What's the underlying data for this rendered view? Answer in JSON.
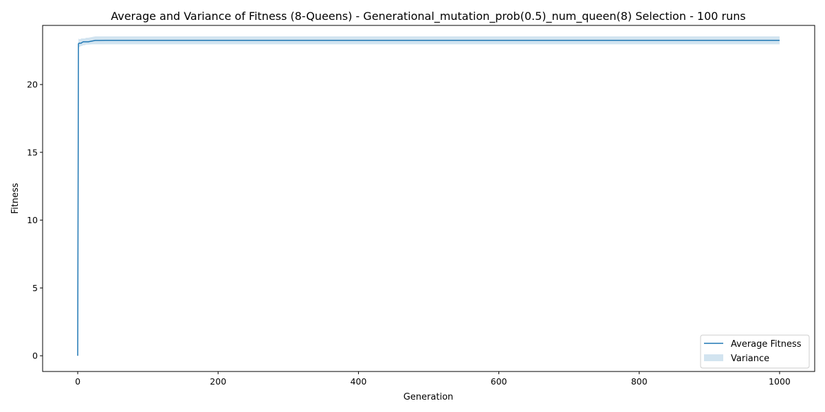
{
  "chart_data": {
    "type": "line",
    "title": "Average and Variance of Fitness (8-Queens) - Generational_mutation_prob(0.5)_num_queen(8) Selection - 100 runs",
    "xlabel": "Generation",
    "ylabel": "Fitness",
    "xlim": [
      -50,
      1050
    ],
    "ylim": [
      -1.16,
      24.36
    ],
    "xticks": [
      0,
      200,
      400,
      600,
      800,
      1000
    ],
    "yticks": [
      0,
      5,
      10,
      15,
      20
    ],
    "grid": false,
    "legend_position": "lower-right",
    "series": [
      {
        "name": "Average Fitness",
        "kind": "line",
        "color": "#1f77b4",
        "x": [
          0,
          1,
          2,
          3,
          4,
          5,
          6,
          8,
          10,
          12,
          15,
          20,
          25,
          30,
          40,
          60,
          100,
          200,
          400,
          600,
          800,
          1000
        ],
        "y": [
          0,
          23.0,
          23.05,
          23.05,
          23.05,
          23.05,
          23.1,
          23.15,
          23.15,
          23.15,
          23.15,
          23.2,
          23.25,
          23.25,
          23.26,
          23.26,
          23.26,
          23.26,
          23.26,
          23.26,
          23.26,
          23.26
        ]
      },
      {
        "name": "Variance",
        "kind": "band",
        "color": "#1f77b4",
        "opacity": 0.2,
        "x": [
          0,
          1,
          2,
          3,
          4,
          5,
          6,
          8,
          10,
          12,
          15,
          20,
          25,
          30,
          40,
          60,
          100,
          200,
          400,
          600,
          800,
          1000
        ],
        "lower": [
          0,
          22.6,
          22.75,
          22.8,
          22.8,
          22.85,
          22.85,
          22.9,
          22.9,
          22.95,
          22.95,
          22.97,
          22.97,
          22.97,
          22.97,
          22.97,
          22.97,
          22.97,
          22.97,
          22.97,
          22.97,
          22.97
        ],
        "upper": [
          0,
          23.4,
          23.35,
          23.35,
          23.35,
          23.4,
          23.4,
          23.4,
          23.4,
          23.45,
          23.45,
          23.5,
          23.55,
          23.55,
          23.55,
          23.55,
          23.55,
          23.55,
          23.55,
          23.55,
          23.55,
          23.55
        ]
      }
    ]
  }
}
